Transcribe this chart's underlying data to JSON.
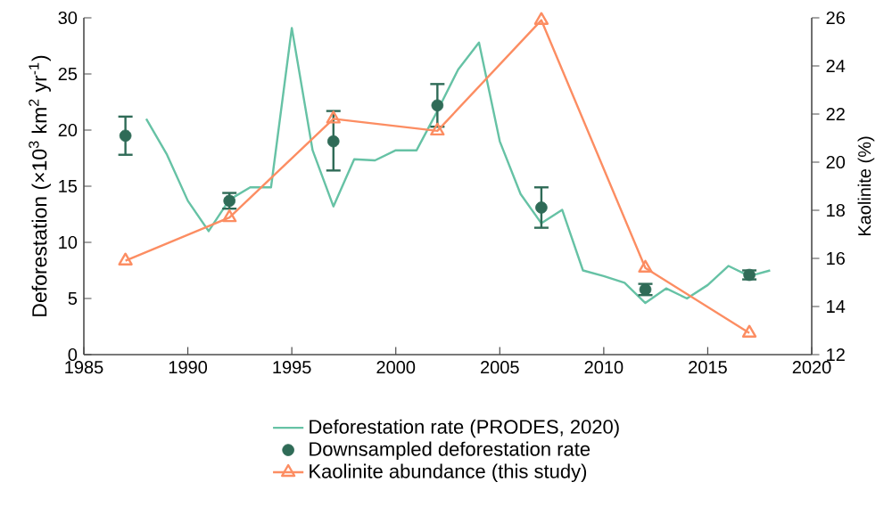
{
  "chart_data": {
    "type": "line",
    "ylabel": "Deforestation (×10$^{3}$ km$^{2}$ yr$^{-1}$)",
    "y2label": "Kaolinite (%)",
    "xlim": [
      1985,
      2020
    ],
    "xticks": [
      1985,
      1990,
      1995,
      2000,
      2005,
      2010,
      2015,
      2020
    ],
    "ylim": [
      0,
      30
    ],
    "yticks": [
      0,
      5,
      10,
      15,
      20,
      25,
      30
    ],
    "y2lim": [
      12,
      26
    ],
    "y2ticks": [
      12,
      14,
      16,
      18,
      20,
      22,
      24,
      26
    ],
    "grid": false,
    "legend": "bottom",
    "series": [
      {
        "name": "Deforestation rate (PRODES, 2020)",
        "color": "#66c2a5",
        "marker": "none",
        "x": [
          1988,
          1989,
          1990,
          1991,
          1992,
          1993,
          1994,
          1995,
          1996,
          1997,
          1998,
          1999,
          2000,
          2001,
          2002,
          2003,
          2004,
          2005,
          2006,
          2007,
          2008,
          2009,
          2010,
          2011,
          2012,
          2013,
          2014,
          2015,
          2016,
          2017,
          2018
        ],
        "values": [
          21.0,
          17.8,
          13.7,
          11.0,
          13.8,
          14.9,
          14.9,
          29.1,
          18.2,
          13.2,
          17.4,
          17.3,
          18.2,
          18.2,
          21.7,
          25.4,
          27.8,
          19.0,
          14.3,
          11.7,
          12.9,
          7.5,
          7.0,
          6.4,
          4.6,
          5.9,
          5.0,
          6.2,
          7.9,
          7.0,
          7.5
        ]
      },
      {
        "name": "Downsampled deforestation rate",
        "type": "scatter",
        "color": "#2f6b57",
        "marker": "circle",
        "x": [
          1987,
          1992,
          1997,
          2002,
          2007,
          2012,
          2017
        ],
        "values": [
          19.5,
          13.7,
          19.0,
          22.2,
          13.1,
          5.8,
          7.1
        ],
        "errors": [
          [
            17.8,
            21.2
          ],
          [
            13.0,
            14.4
          ],
          [
            16.4,
            21.7
          ],
          [
            20.3,
            24.1
          ],
          [
            11.3,
            14.9
          ],
          [
            5.3,
            6.3
          ],
          [
            6.7,
            7.5
          ]
        ]
      },
      {
        "name": "Kaolinite abundance (this study)",
        "axis": "y2",
        "color": "#fc8d62",
        "marker": "triangle",
        "x": [
          1987,
          1992,
          1997,
          2002,
          2007,
          2012,
          2017
        ],
        "values": [
          15.9,
          17.7,
          21.8,
          21.3,
          25.9,
          15.6,
          12.9
        ]
      }
    ]
  }
}
